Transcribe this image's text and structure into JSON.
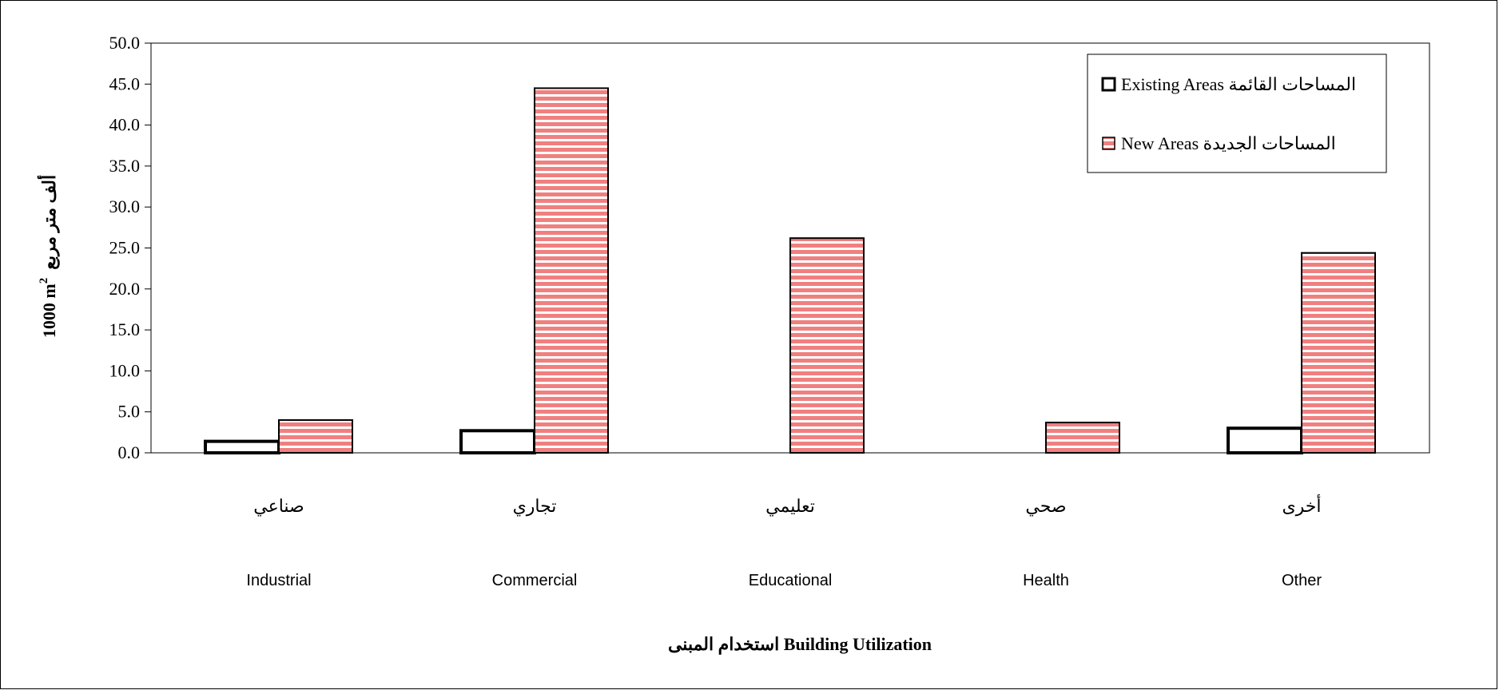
{
  "chart_data": {
    "type": "bar",
    "categories": [
      {
        "ar": "صناعي",
        "en": "Industrial"
      },
      {
        "ar": "تجاري",
        "en": "Commercial"
      },
      {
        "ar": "تعليمي",
        "en": "Educational"
      },
      {
        "ar": "صحي",
        "en": "Health"
      },
      {
        "ar": "أخرى",
        "en": "Other"
      }
    ],
    "series": [
      {
        "name": "Existing Areas المساحات القائمة",
        "values": [
          1.4,
          2.7,
          0,
          0,
          3.0
        ],
        "fill": "#ffffff",
        "stroke": "#000000"
      },
      {
        "name": "New Areas المساحات الجديدة",
        "values": [
          4.0,
          44.5,
          26.2,
          3.7,
          24.4
        ],
        "fill": "#f08080",
        "stripe": "#ffffff",
        "stroke": "#000000"
      }
    ],
    "xlabel": "استخدام المبنى Building Utilization",
    "ylabel": "1000 m² ألف متر مربع",
    "ylabel_parts": {
      "base": "1000 m",
      "sup": "2",
      "ar": "ألف متر مربع"
    },
    "ylim": [
      0,
      50
    ],
    "yticks": [
      "0.0",
      "5.0",
      "10.0",
      "15.0",
      "20.0",
      "25.0",
      "30.0",
      "35.0",
      "40.0",
      "45.0",
      "50.0"
    ],
    "grid": false,
    "legend_position": "top-right"
  }
}
